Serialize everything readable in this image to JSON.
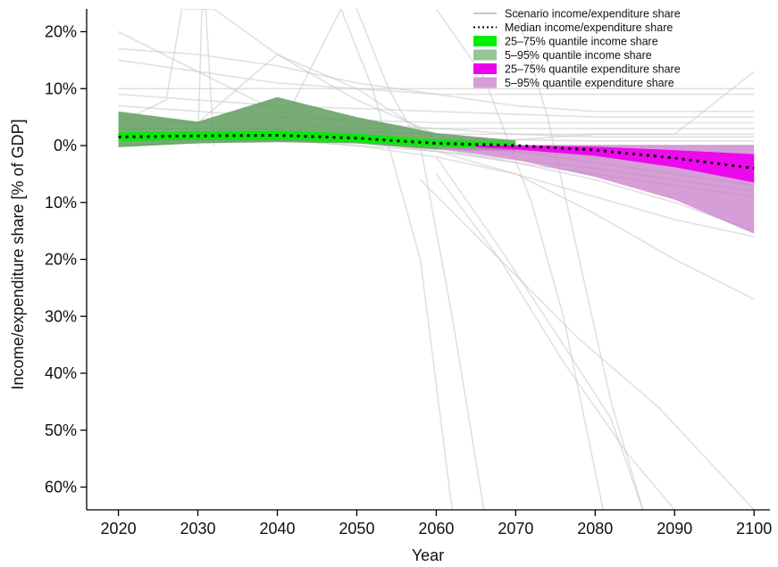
{
  "chart_data": {
    "type": "area",
    "title": "",
    "xlabel": "Year",
    "ylabel": "Income/expenditure share [% of GDP]",
    "xlim": [
      2016,
      2102
    ],
    "ylim": [
      -64,
      24
    ],
    "x_ticks": [
      2020,
      2030,
      2040,
      2050,
      2060,
      2070,
      2080,
      2090,
      2100
    ],
    "y_ticks": [
      {
        "value": 20,
        "label": "20%"
      },
      {
        "value": 10,
        "label": "10%"
      },
      {
        "value": 0,
        "label": "0%"
      },
      {
        "value": -10,
        "label": "10%"
      },
      {
        "value": -20,
        "label": "20%"
      },
      {
        "value": -30,
        "label": "30%"
      },
      {
        "value": -40,
        "label": "40%"
      },
      {
        "value": -50,
        "label": "50%"
      },
      {
        "value": -60,
        "label": "60%"
      }
    ],
    "grid": false,
    "legend_position": "top-right",
    "legend": [
      {
        "label": "Scenario income/expenditure share",
        "kind": "line",
        "color": "#c8c8c8"
      },
      {
        "label": "Median income/expenditure share",
        "kind": "dotted",
        "color": "#000000"
      },
      {
        "label": "25–75% quantile income share",
        "kind": "patch",
        "color": "#00ee00"
      },
      {
        "label": "5–95% quantile income share",
        "kind": "patch",
        "color": "#98c498"
      },
      {
        "label": "25–75% quantile expenditure share",
        "kind": "patch",
        "color": "#ee00ee"
      },
      {
        "label": "5–95% quantile expenditure share",
        "kind": "patch",
        "color": "#d79ed7"
      }
    ],
    "colors": {
      "scenario": "#c8c8c8",
      "median": "#000000",
      "income_q25_75": "#00ee00",
      "income_q5_95": "#5f9d5f",
      "expenditure_q25_75": "#ee00ee",
      "expenditure_q5_95": "#c87ec8"
    },
    "x": [
      2020,
      2030,
      2040,
      2050,
      2060,
      2070,
      2080,
      2090,
      2100
    ],
    "median": [
      1.5,
      1.7,
      1.8,
      1.3,
      0.4,
      0.0,
      -0.8,
      -2.2,
      -4.0
    ],
    "income_q5_95_band": {
      "x": [
        2020,
        2030,
        2040,
        2050,
        2060,
        2070
      ],
      "upper": [
        6.0,
        4.2,
        8.5,
        5.0,
        2.2,
        0.9
      ],
      "lower": [
        -0.3,
        0.4,
        0.6,
        0.4,
        -0.7,
        -0.9
      ]
    },
    "income_q25_75_band": {
      "x": [
        2020,
        2030,
        2040,
        2050,
        2060,
        2070
      ],
      "upper": [
        2.3,
        2.5,
        2.6,
        2.1,
        1.0,
        0.5
      ],
      "lower": [
        0.8,
        1.0,
        1.1,
        0.6,
        -0.2,
        -0.5
      ]
    },
    "expenditure_q5_95_band": {
      "x": [
        2060,
        2070,
        2080,
        2090,
        2100
      ],
      "upper": [
        0.0,
        0.1,
        0.1,
        0.1,
        0.1
      ],
      "lower": [
        -0.5,
        -2.5,
        -5.5,
        -9.5,
        -15.5
      ]
    },
    "expenditure_q25_75_band": {
      "x": [
        2065,
        2070,
        2080,
        2090,
        2100
      ],
      "upper": [
        0.0,
        0.0,
        -0.2,
        -0.8,
        -1.5
      ],
      "lower": [
        -0.3,
        -0.7,
        -1.8,
        -3.8,
        -6.5
      ]
    },
    "scenario_lines": [
      {
        "x": [
          2020,
          2030,
          2040,
          2050,
          2060,
          2070,
          2080,
          2090,
          2100
        ],
        "y": [
          20,
          13,
          6,
          4,
          3,
          2,
          1.5,
          1.5,
          1.5
        ]
      },
      {
        "x": [
          2020,
          2030,
          2040,
          2050,
          2060,
          2070,
          2080,
          2090,
          2100
        ],
        "y": [
          17,
          16,
          14,
          11,
          9,
          7,
          6,
          6,
          6
        ]
      },
      {
        "x": [
          2020,
          2030,
          2040,
          2050,
          2060,
          2070,
          2080,
          2090,
          2100
        ],
        "y": [
          15,
          13,
          11,
          10,
          9,
          9,
          9,
          9,
          9
        ]
      },
      {
        "x": [
          2020,
          2030,
          2040,
          2050,
          2060,
          2070,
          2080,
          2090,
          2100
        ],
        "y": [
          10,
          10,
          10,
          10,
          10,
          10,
          10,
          10,
          10
        ]
      },
      {
        "x": [
          2020,
          2030,
          2040,
          2050,
          2060,
          2070,
          2080,
          2090,
          2100
        ],
        "y": [
          9,
          8,
          7,
          6.5,
          6,
          5.5,
          5,
          5,
          5
        ]
      },
      {
        "x": [
          2020,
          2030,
          2040,
          2050,
          2060,
          2070,
          2080,
          2090,
          2100
        ],
        "y": [
          7,
          6,
          5,
          4.5,
          4,
          4,
          4,
          4,
          4
        ]
      },
      {
        "x": [
          2020,
          2030,
          2040,
          2050,
          2060,
          2070,
          2080,
          2090,
          2100
        ],
        "y": [
          5,
          4,
          3.5,
          3,
          3,
          3,
          3,
          3,
          3
        ]
      },
      {
        "x": [
          2020,
          2030,
          2040,
          2050,
          2060,
          2070,
          2080,
          2090,
          2100
        ],
        "y": [
          3,
          3,
          3,
          2.5,
          2,
          2,
          2,
          2,
          2
        ]
      },
      {
        "x": [
          2020,
          2030,
          2040,
          2050,
          2060,
          2070,
          2080,
          2090,
          2100
        ],
        "y": [
          2,
          2,
          2,
          1.5,
          1,
          1,
          0.8,
          0.8,
          0.8
        ]
      },
      {
        "x": [
          2020,
          2030,
          2040,
          2050,
          2060,
          2070,
          2080,
          2090,
          2100
        ],
        "y": [
          1,
          1,
          1,
          0.5,
          0,
          0,
          0,
          0,
          0
        ]
      },
      {
        "x": [
          2020,
          2030,
          2040,
          2050,
          2060,
          2070,
          2080,
          2090,
          2100
        ],
        "y": [
          0,
          0.5,
          1,
          0.5,
          -0.5,
          -1,
          -2,
          -3,
          -4
        ]
      },
      {
        "x": [
          2020,
          2030,
          2040,
          2050,
          2060,
          2070,
          2080,
          2090,
          2100
        ],
        "y": [
          1,
          1,
          1,
          0,
          -1,
          -3,
          -5,
          -7,
          -9
        ]
      },
      {
        "x": [
          2020,
          2030,
          2040,
          2050,
          2060,
          2070,
          2080,
          2090,
          2100
        ],
        "y": [
          1.5,
          1.5,
          1.2,
          0.5,
          -1,
          -2.5,
          -4,
          -6,
          -8
        ]
      },
      {
        "x": [
          2020,
          2030,
          2040,
          2050,
          2060,
          2070,
          2080,
          2090,
          2100
        ],
        "y": [
          2,
          2,
          2,
          1,
          -0.5,
          -3,
          -6,
          -10,
          -15
        ]
      },
      {
        "x": [
          2020,
          2030,
          2040,
          2050,
          2060,
          2070,
          2080,
          2090,
          2100
        ],
        "y": [
          1,
          1,
          1,
          0,
          -2,
          -5,
          -9,
          -13,
          -16
        ]
      },
      {
        "x": [
          2020,
          2030,
          2040,
          2050,
          2060,
          2070,
          2080,
          2090,
          2100
        ],
        "y": [
          3,
          3,
          3,
          1,
          -1,
          -5,
          -12,
          -20,
          -27
        ]
      },
      {
        "x": [
          2020,
          2030,
          2040,
          2050,
          2060,
          2070,
          2080,
          2090,
          2100
        ],
        "y": [
          0,
          0.5,
          1,
          0.5,
          0,
          1,
          2,
          2,
          13
        ]
      },
      {
        "x": [
          2020,
          2030,
          2040,
          2050,
          2060,
          2070,
          2080,
          2090,
          2100
        ],
        "y": [
          4,
          4,
          16,
          10,
          1,
          -1,
          -3,
          -5,
          -7
        ]
      },
      {
        "x": [
          2020,
          2026,
          2028,
          2032,
          2040,
          2050,
          2060
        ],
        "y": [
          4,
          8,
          24,
          24,
          16,
          8,
          2
        ]
      },
      {
        "x": [
          2020,
          2030,
          2040,
          2048,
          2052,
          2058,
          2062
        ],
        "y": [
          2,
          2,
          2,
          24,
          10,
          -20,
          -64
        ]
      },
      {
        "x": [
          2050,
          2054,
          2058,
          2062,
          2066
        ],
        "y": [
          24,
          10,
          0,
          -30,
          -64
        ]
      },
      {
        "x": [
          2060,
          2066,
          2072,
          2076,
          2081
        ],
        "y": [
          24,
          12,
          -10,
          -30,
          -64
        ]
      },
      {
        "x": [
          2060,
          2068,
          2076,
          2082,
          2086
        ],
        "y": [
          -2,
          -18,
          -35,
          -48,
          -64
        ]
      },
      {
        "x": [
          2060,
          2068,
          2076,
          2084,
          2090
        ],
        "y": [
          -5,
          -20,
          -38,
          -54,
          -64
        ]
      },
      {
        "x": [
          2058,
          2068,
          2078,
          2088,
          2100
        ],
        "y": [
          -6,
          -20,
          -34,
          -46,
          -64
        ]
      },
      {
        "x": [
          2070,
          2074,
          2078,
          2082,
          2086
        ],
        "y": [
          24,
          5,
          -20,
          -45,
          -64
        ]
      },
      {
        "x": [
          2030,
          2030.5,
          2031,
          2032
        ],
        "y": [
          0,
          24,
          24,
          0
        ]
      }
    ]
  }
}
